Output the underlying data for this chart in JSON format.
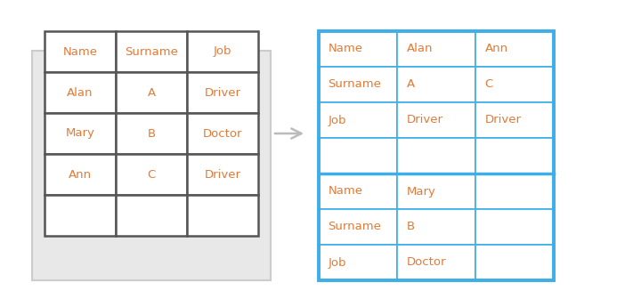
{
  "left_table": {
    "rows": [
      [
        "Name",
        "Surname",
        "Job"
      ],
      [
        "Alan",
        "A",
        "Driver"
      ],
      [
        "Mary",
        "B",
        "Doctor"
      ],
      [
        "Ann",
        "C",
        "Driver"
      ],
      [
        "",
        "",
        ""
      ]
    ],
    "border_color": "#555555",
    "text_color": "#e07b39",
    "bg_color": "#ffffff",
    "outer_bg": "#e8e8e8"
  },
  "right_table": {
    "section1_rows": [
      [
        "Name",
        "Alan",
        "Ann"
      ],
      [
        "Surname",
        "A",
        "C"
      ],
      [
        "Job",
        "Driver",
        "Driver"
      ],
      [
        "",
        "",
        ""
      ]
    ],
    "section2_rows": [
      [
        "Name",
        "Mary",
        ""
      ],
      [
        "Surname",
        "B",
        ""
      ],
      [
        "Job",
        "Doctor",
        ""
      ]
    ],
    "border_color": "#3daee9",
    "thick_border_color": "#3daee9",
    "text_color": "#e07b39",
    "bg_color": "#ffffff"
  },
  "arrow_color": "#bbbbbb",
  "background": "#ffffff",
  "fig_width": 7.02,
  "fig_height": 3.36,
  "dpi": 100
}
